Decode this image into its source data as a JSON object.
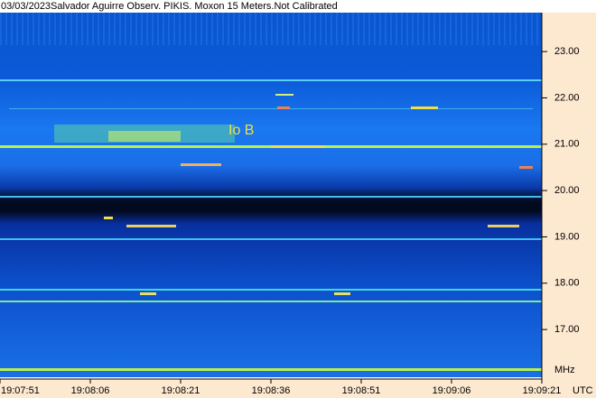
{
  "chart_data": {
    "type": "spectrogram",
    "title": "03/03/2023Salvador Aguirre Observ. PIKIS. Moxon 15 Meters.Not Calibrated",
    "annotation": "Io B",
    "ylabel": "MHz",
    "xlabel": "UTC",
    "xticks": [
      "19:07:51",
      "19:08:06",
      "19:08:21",
      "19:08:36",
      "19:08:51",
      "19:09:06",
      "19:09:21"
    ],
    "ylim": [
      15.97,
      23.84
    ],
    "yticks": [
      {
        "value": 17,
        "label": "17.00"
      },
      {
        "value": 18,
        "label": "18.00"
      },
      {
        "value": 19,
        "label": "19.00"
      },
      {
        "value": 20,
        "label": "20.00"
      },
      {
        "value": 21,
        "label": "21.00"
      },
      {
        "value": 22,
        "label": "22.00"
      },
      {
        "value": 23,
        "label": "23.00"
      }
    ]
  }
}
